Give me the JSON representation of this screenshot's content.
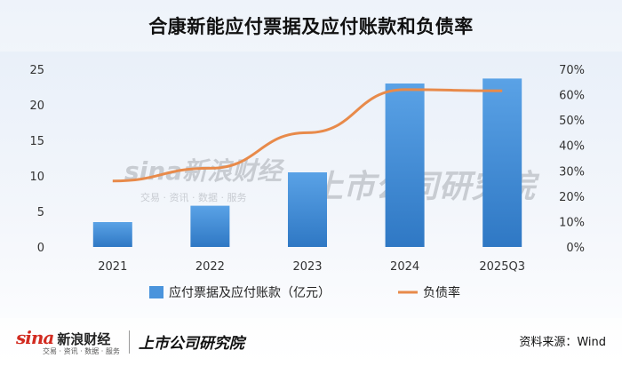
{
  "title": "合康新能应付票据及应付账款和负债率",
  "chart_data": {
    "type": "bar+line",
    "categories": [
      "2021",
      "2022",
      "2023",
      "2024",
      "2025Q3"
    ],
    "series": [
      {
        "name": "应付票据及应付账款（亿元）",
        "type": "bar",
        "axis": "left",
        "values": [
          3.5,
          5.8,
          10.5,
          23.0,
          23.7
        ],
        "color": "#4a94dc"
      },
      {
        "name": "负债率",
        "type": "line",
        "axis": "right",
        "values": [
          26,
          31,
          45,
          62,
          61.5
        ],
        "color": "#e88a4a"
      }
    ],
    "left_axis": {
      "min": 0,
      "max": 25,
      "ticks": [
        "0",
        "5",
        "10",
        "15",
        "20",
        "25"
      ]
    },
    "right_axis": {
      "min": 0,
      "max": 70,
      "ticks": [
        "0%",
        "10%",
        "20%",
        "30%",
        "40%",
        "50%",
        "60%",
        "70%"
      ]
    },
    "grid": false,
    "legend_position": "bottom"
  },
  "watermark": {
    "brand": "sina新浪财经",
    "brand_sub": "交易 · 资讯 · 数据 · 服务",
    "institute": "上市公司研究院"
  },
  "footer": {
    "sina_mark": "sina",
    "sina_cn": "新浪财经",
    "sina_sub": "交易 · 资讯 · 数据 · 服务",
    "institute": "上市公司研究院",
    "source": "资料来源：Wind"
  }
}
